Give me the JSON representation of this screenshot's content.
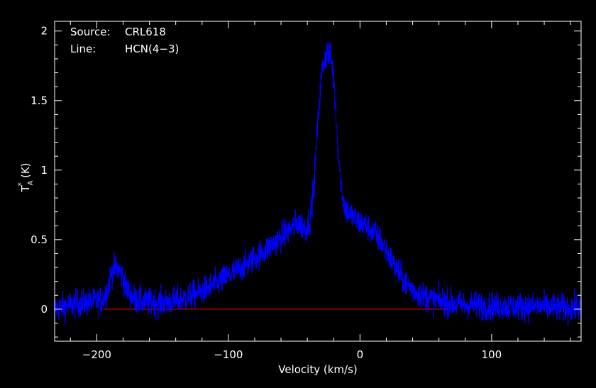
{
  "annotations": {
    "source_label": "Source:",
    "source_value": "CRL618",
    "line_label": "Line:",
    "line_value": "HCN(4−3)"
  },
  "colors": {
    "background": "#000000",
    "axes": "#ffffff",
    "spectrum": "#0000ff",
    "baseline": "#ff0000"
  },
  "chart_data": {
    "type": "line",
    "title": "",
    "xlabel": "Velocity (km/s)",
    "ylabel_main": "T",
    "ylabel_sup": "*",
    "ylabel_sub": "A",
    "ylabel_unit": "(K)",
    "xlim": [
      -232,
      168
    ],
    "ylim": [
      -0.23,
      2.07
    ],
    "xticks": [
      -200,
      -100,
      0,
      100
    ],
    "xtick_labels": [
      "−200",
      "−100",
      "0",
      "100"
    ],
    "yticks": [
      0,
      0.5,
      1,
      1.5,
      2
    ],
    "ytick_labels": [
      "0",
      "0.5",
      "1",
      "1.5",
      "2"
    ],
    "grid": false,
    "series": [
      {
        "style": "noisy-histogram",
        "x": [
          -232,
          -225,
          -215,
          -205,
          -198,
          -195,
          -192,
          -190,
          -188,
          -186,
          -184,
          -182,
          -180,
          -178,
          -175,
          -172,
          -168,
          -160,
          -150,
          -140,
          -130,
          -120,
          -110,
          -100,
          -90,
          -80,
          -70,
          -60,
          -55,
          -50,
          -47,
          -44,
          -41,
          -38,
          -35,
          -33,
          -31,
          -29,
          -27,
          -25,
          -23,
          -21,
          -19,
          -17,
          -15,
          -13,
          -11,
          -9,
          -7,
          -5,
          -3,
          0,
          5,
          10,
          15,
          20,
          25,
          30,
          35,
          40,
          45,
          50,
          55,
          60,
          65,
          70,
          80,
          90,
          100,
          110,
          120,
          130,
          140,
          150,
          160,
          168
        ],
        "y": [
          0.0,
          0.02,
          0.04,
          0.05,
          0.06,
          0.08,
          0.14,
          0.22,
          0.28,
          0.3,
          0.29,
          0.26,
          0.22,
          0.16,
          0.11,
          0.08,
          0.06,
          0.05,
          0.05,
          0.06,
          0.09,
          0.13,
          0.18,
          0.24,
          0.3,
          0.37,
          0.44,
          0.52,
          0.56,
          0.6,
          0.62,
          0.6,
          0.58,
          0.65,
          0.9,
          1.2,
          1.5,
          1.7,
          1.8,
          1.85,
          1.82,
          1.75,
          1.5,
          1.2,
          0.95,
          0.8,
          0.72,
          0.7,
          0.68,
          0.66,
          0.64,
          0.62,
          0.6,
          0.55,
          0.5,
          0.42,
          0.33,
          0.25,
          0.19,
          0.14,
          0.11,
          0.09,
          0.07,
          0.06,
          0.05,
          0.04,
          0.03,
          0.03,
          0.02,
          0.02,
          0.02,
          0.02,
          0.02,
          0.01,
          0.01,
          0.01
        ],
        "noise_rms": 0.05
      }
    ],
    "baseline": {
      "y": 0,
      "x_from": -195,
      "x_to": 70
    }
  }
}
